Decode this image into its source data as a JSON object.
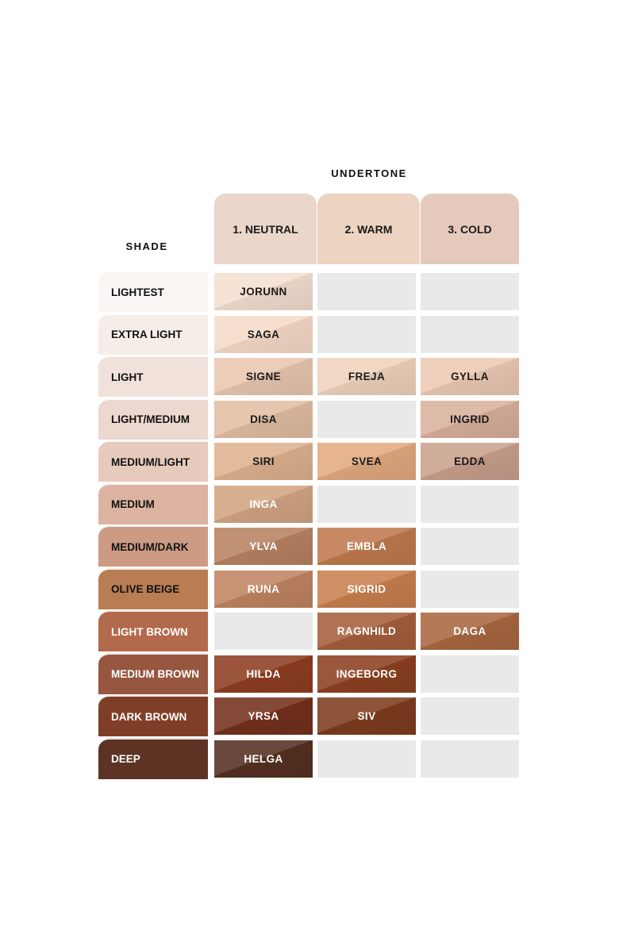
{
  "header": {
    "undertone_label": "UNDERTONE",
    "shade_label": "SHADE"
  },
  "undertones": [
    {
      "label": "1. NEUTRAL",
      "color": "#ead6ca"
    },
    {
      "label": "2. WARM",
      "color": "#edd3c1"
    },
    {
      "label": "3. COLD",
      "color": "#e6c9bd"
    }
  ],
  "rows": [
    {
      "shade": "LIGHTEST",
      "color": "#f9f6f3",
      "text": "#111111",
      "cells": [
        {
          "name": "JORUNN",
          "color": "#f4dfd0",
          "text": "#1a1a1a"
        },
        null,
        null
      ]
    },
    {
      "shade": "EXTRA LIGHT",
      "color": "#f5ede8",
      "text": "#111111",
      "cells": [
        {
          "name": "SAGA",
          "color": "#f6dbc8",
          "text": "#1a1a1a"
        },
        null,
        null
      ]
    },
    {
      "shade": "LIGHT",
      "color": "#f0e1da",
      "text": "#111111",
      "cells": [
        {
          "name": "SIGNE",
          "color": "#e9c6b0",
          "text": "#1a1a1a"
        },
        {
          "name": "FREJA",
          "color": "#efd3bc",
          "text": "#1a1a1a"
        },
        {
          "name": "GYLLA",
          "color": "#ecc9b4",
          "text": "#1a1a1a"
        }
      ]
    },
    {
      "shade": "LIGHT/MEDIUM",
      "color": "#ecd8ce",
      "text": "#111111",
      "cells": [
        {
          "name": "DISA",
          "color": "#e2bea4",
          "text": "#1a1a1a"
        },
        null,
        {
          "name": "INGRID",
          "color": "#d9b09c",
          "text": "#1a1a1a"
        }
      ]
    },
    {
      "shade": "MEDIUM/LIGHT",
      "color": "#e6cbbd",
      "text": "#111111",
      "cells": [
        {
          "name": "SIRI",
          "color": "#ddb28f",
          "text": "#1a1a1a"
        },
        {
          "name": "SVEA",
          "color": "#e2aa80",
          "text": "#1a1a1a"
        },
        {
          "name": "EDDA",
          "color": "#c9a08c",
          "text": "#1a1a1a"
        }
      ]
    },
    {
      "shade": "MEDIUM",
      "color": "#dbb3a0",
      "text": "#111111",
      "cells": [
        {
          "name": "INGA",
          "color": "#d2a583",
          "text": "#ffffff"
        },
        null,
        null
      ]
    },
    {
      "shade": "MEDIUM/DARK",
      "color": "#cd9a84",
      "text": "#111111",
      "cells": [
        {
          "name": "YLVA",
          "color": "#b88262",
          "text": "#ffffff"
        },
        {
          "name": "EMBLA",
          "color": "#c07a4e",
          "text": "#ffffff"
        },
        null
      ]
    },
    {
      "shade": "OLIVE BEIGE",
      "color": "#b87d53",
      "text": "#111111",
      "cells": [
        {
          "name": "RUNA",
          "color": "#c08461",
          "text": "#ffffff"
        },
        {
          "name": "SIGRID",
          "color": "#c97f4e",
          "text": "#ffffff"
        },
        null
      ]
    },
    {
      "shade": "LIGHT BROWN",
      "color": "#b3694b",
      "text": "#ffffff",
      "cells": [
        null,
        {
          "name": "RAGNHILD",
          "color": "#a65e3d",
          "text": "#ffffff"
        },
        {
          "name": "DAGA",
          "color": "#a86840",
          "text": "#ffffff"
        }
      ]
    },
    {
      "shade": "MEDIUM BROWN",
      "color": "#97563f",
      "text": "#ffffff",
      "cells": [
        {
          "name": "HILDA",
          "color": "#8e3e22",
          "text": "#ffffff"
        },
        {
          "name": "INGEBORG",
          "color": "#8c4021",
          "text": "#ffffff"
        },
        null
      ]
    },
    {
      "shade": "DARK BROWN",
      "color": "#7e3f26",
      "text": "#ffffff",
      "cells": [
        {
          "name": "YRSA",
          "color": "#74301c",
          "text": "#ffffff"
        },
        {
          "name": "SIV",
          "color": "#7e3c1f",
          "text": "#ffffff"
        },
        null
      ]
    },
    {
      "shade": "DEEP",
      "color": "#5e3324",
      "text": "#ffffff",
      "cells": [
        {
          "name": "HELGA",
          "color": "#553021",
          "text": "#ffffff"
        },
        null,
        null
      ]
    }
  ]
}
